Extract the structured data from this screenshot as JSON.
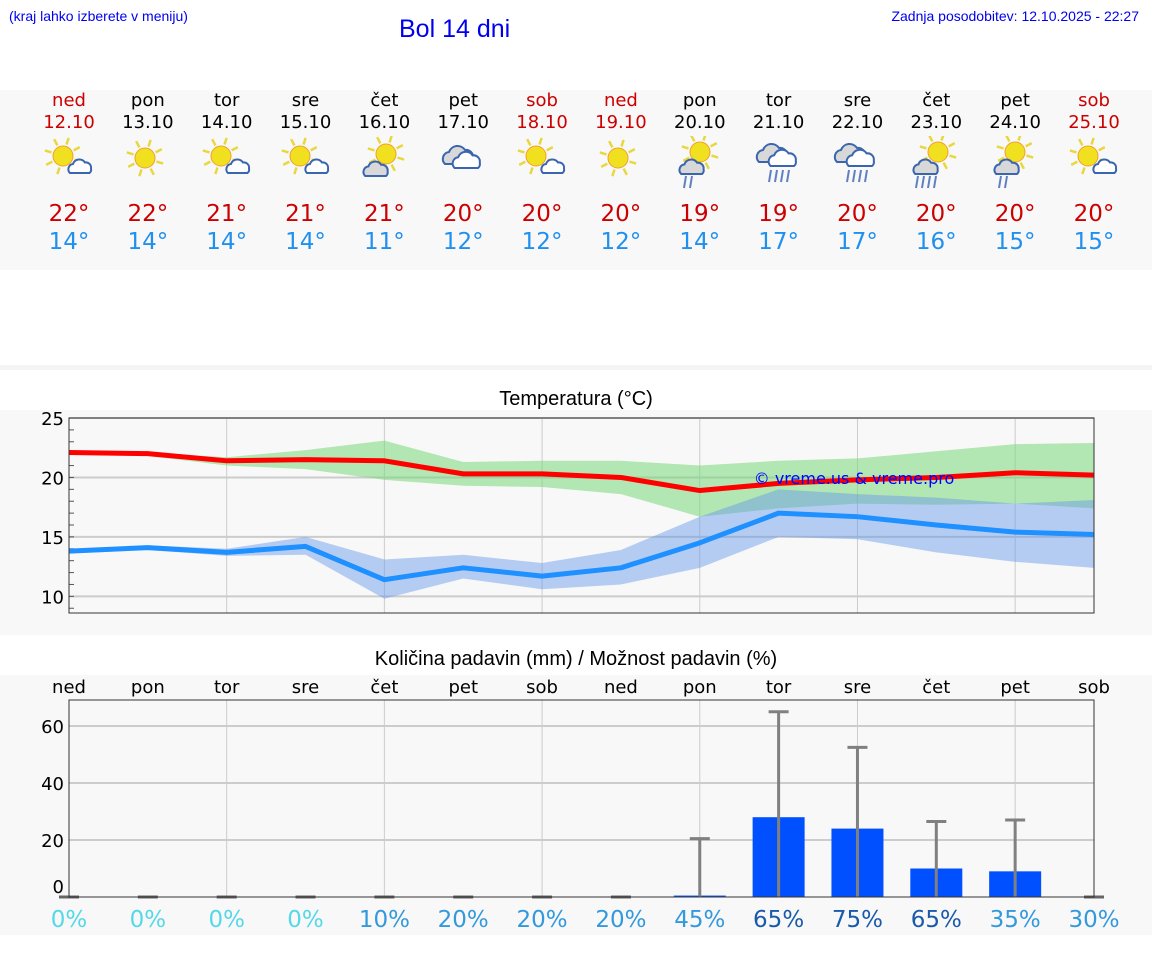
{
  "header": {
    "hint": "(kraj lahko izberete v meniju)",
    "title": "Bol 14 dni",
    "updated": "Zadnja posodobitev: 12.10.2025 - 22:27"
  },
  "colors": {
    "weekend": "#cc0000",
    "weekday": "#000000",
    "max": "#ff0000",
    "min": "#1e90ff",
    "bar": "#0050ff"
  },
  "days": [
    {
      "name": "ned",
      "date": "12.10",
      "weekend": true,
      "icon": "sun-small-cloud-icon",
      "max": "22°",
      "min": "14°"
    },
    {
      "name": "pon",
      "date": "13.10",
      "weekend": false,
      "icon": "sun-icon",
      "max": "22°",
      "min": "14°"
    },
    {
      "name": "tor",
      "date": "14.10",
      "weekend": false,
      "icon": "sun-small-cloud-icon",
      "max": "21°",
      "min": "14°"
    },
    {
      "name": "sre",
      "date": "15.10",
      "weekend": false,
      "icon": "sun-small-cloud-icon",
      "max": "21°",
      "min": "14°"
    },
    {
      "name": "čet",
      "date": "16.10",
      "weekend": false,
      "icon": "sun-behind-cloud-icon",
      "max": "21°",
      "min": "11°"
    },
    {
      "name": "pet",
      "date": "17.10",
      "weekend": false,
      "icon": "cloudy-icon",
      "max": "20°",
      "min": "12°"
    },
    {
      "name": "sob",
      "date": "18.10",
      "weekend": true,
      "icon": "sun-small-cloud-icon",
      "max": "20°",
      "min": "12°"
    },
    {
      "name": "ned",
      "date": "19.10",
      "weekend": true,
      "icon": "sun-icon",
      "max": "20°",
      "min": "12°"
    },
    {
      "name": "pon",
      "date": "20.10",
      "weekend": false,
      "icon": "sun-cloud-light-rain-icon",
      "max": "19°",
      "min": "14°"
    },
    {
      "name": "tor",
      "date": "21.10",
      "weekend": false,
      "icon": "cloudy-rain-icon",
      "max": "19°",
      "min": "17°"
    },
    {
      "name": "sre",
      "date": "22.10",
      "weekend": false,
      "icon": "cloudy-rain-icon",
      "max": "20°",
      "min": "17°"
    },
    {
      "name": "čet",
      "date": "23.10",
      "weekend": false,
      "icon": "sun-cloud-rain-icon",
      "max": "20°",
      "min": "16°"
    },
    {
      "name": "pet",
      "date": "24.10",
      "weekend": false,
      "icon": "sun-cloud-light-rain-icon",
      "max": "20°",
      "min": "15°"
    },
    {
      "name": "sob",
      "date": "25.10",
      "weekend": true,
      "icon": "sun-small-cloud-icon",
      "max": "20°",
      "min": "15°"
    }
  ],
  "chart_data": [
    {
      "type": "line",
      "title": "Temperatura (°C)",
      "ylim": [
        8.6,
        25
      ],
      "yticks": [
        "25",
        "20",
        "15",
        "10"
      ],
      "ytick_values": [
        25,
        20,
        15,
        10
      ],
      "watermark": "© vreme.us & vreme.pro",
      "series": [
        {
          "name": "max",
          "values": [
            22.1,
            22.0,
            21.4,
            21.5,
            21.4,
            20.3,
            20.3,
            20.0,
            18.9,
            19.5,
            19.8,
            20.0,
            20.4,
            20.2
          ],
          "band_high": [
            22.2,
            22.1,
            21.7,
            22.3,
            23.1,
            21.3,
            21.4,
            21.4,
            21.0,
            21.4,
            21.6,
            22.2,
            22.8,
            22.9
          ],
          "band_low": [
            22.0,
            21.8,
            21.0,
            20.7,
            19.8,
            19.3,
            19.2,
            18.6,
            16.7,
            17.4,
            17.8,
            17.7,
            17.8,
            17.4
          ]
        },
        {
          "name": "min",
          "values": [
            13.8,
            14.1,
            13.7,
            14.2,
            11.4,
            12.4,
            11.7,
            12.4,
            14.5,
            17.0,
            16.7,
            16.0,
            15.4,
            15.2
          ],
          "band_high": [
            13.9,
            14.3,
            14.0,
            15.0,
            13.1,
            13.5,
            12.8,
            13.9,
            16.7,
            19.0,
            18.6,
            18.3,
            17.8,
            18.1
          ],
          "band_low": [
            13.6,
            13.9,
            13.4,
            13.5,
            9.8,
            11.5,
            10.6,
            11.0,
            12.4,
            15.0,
            14.8,
            13.7,
            12.9,
            12.4
          ]
        }
      ]
    },
    {
      "type": "bar",
      "title": "Količina padavin (mm) / Možnost padavin (%)",
      "ylim": [
        -4,
        69
      ],
      "yticks": [
        "60",
        "40",
        "20",
        "0"
      ],
      "ytick_values": [
        60,
        40,
        20,
        0
      ],
      "categories": [
        "ned",
        "pon",
        "tor",
        "sre",
        "čet",
        "pet",
        "sob",
        "ned",
        "pon",
        "tor",
        "sre",
        "čet",
        "pet",
        "sob"
      ],
      "values": [
        0,
        0,
        0,
        0,
        0,
        0,
        0,
        0,
        0.5,
        28,
        24,
        10,
        9,
        0
      ],
      "error_high": [
        0,
        0,
        0,
        0,
        0,
        0,
        0,
        0,
        20.5,
        65,
        52.5,
        26.5,
        27,
        0
      ],
      "probability": [
        "0%",
        "0%",
        "0%",
        "0%",
        "10%",
        "20%",
        "20%",
        "20%",
        "45%",
        "65%",
        "75%",
        "65%",
        "35%",
        "30%"
      ],
      "probability_values": [
        0,
        0,
        0,
        0,
        10,
        20,
        20,
        20,
        45,
        65,
        75,
        65,
        35,
        30
      ]
    }
  ]
}
